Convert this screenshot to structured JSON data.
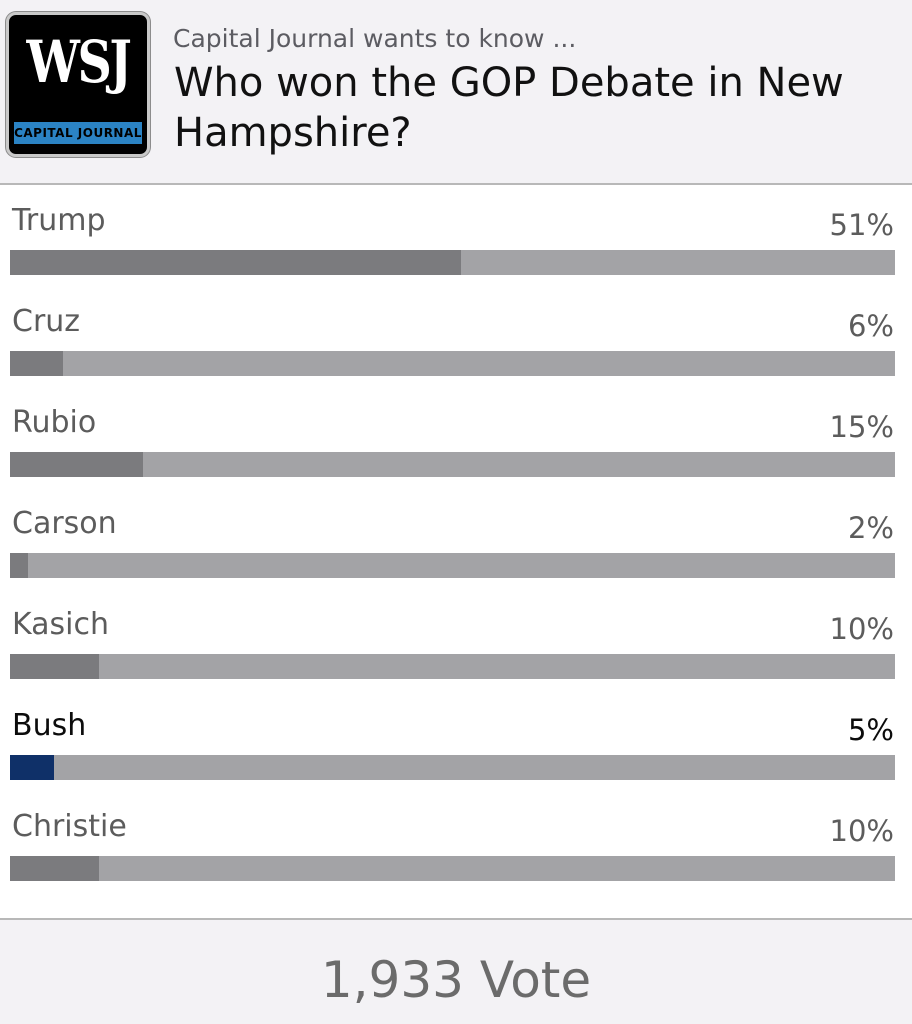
{
  "header": {
    "logo_text": "WSJ",
    "logo_subtext": "CAPITAL JOURNAL",
    "kicker": "Capital Journal wants to know ...",
    "question": "Who won the GOP Debate in New Hampshire?"
  },
  "poll": {
    "options": [
      {
        "label": "Trump",
        "percent_label": "51%",
        "percent": 51,
        "selected": false
      },
      {
        "label": "Cruz",
        "percent_label": "6%",
        "percent": 6,
        "selected": false
      },
      {
        "label": "Rubio",
        "percent_label": "15%",
        "percent": 15,
        "selected": false
      },
      {
        "label": "Carson",
        "percent_label": "2%",
        "percent": 2,
        "selected": false
      },
      {
        "label": "Kasich",
        "percent_label": "10%",
        "percent": 10,
        "selected": false
      },
      {
        "label": "Bush",
        "percent_label": "5%",
        "percent": 5,
        "selected": true
      },
      {
        "label": "Christie",
        "percent_label": "10%",
        "percent": 10,
        "selected": false
      }
    ],
    "colors": {
      "bar_fill": "#7b7b7e",
      "bar_track": "#a3a3a6",
      "selected_fill": "#0f3068"
    }
  },
  "footer": {
    "vote_count": "1,933 Vote"
  }
}
